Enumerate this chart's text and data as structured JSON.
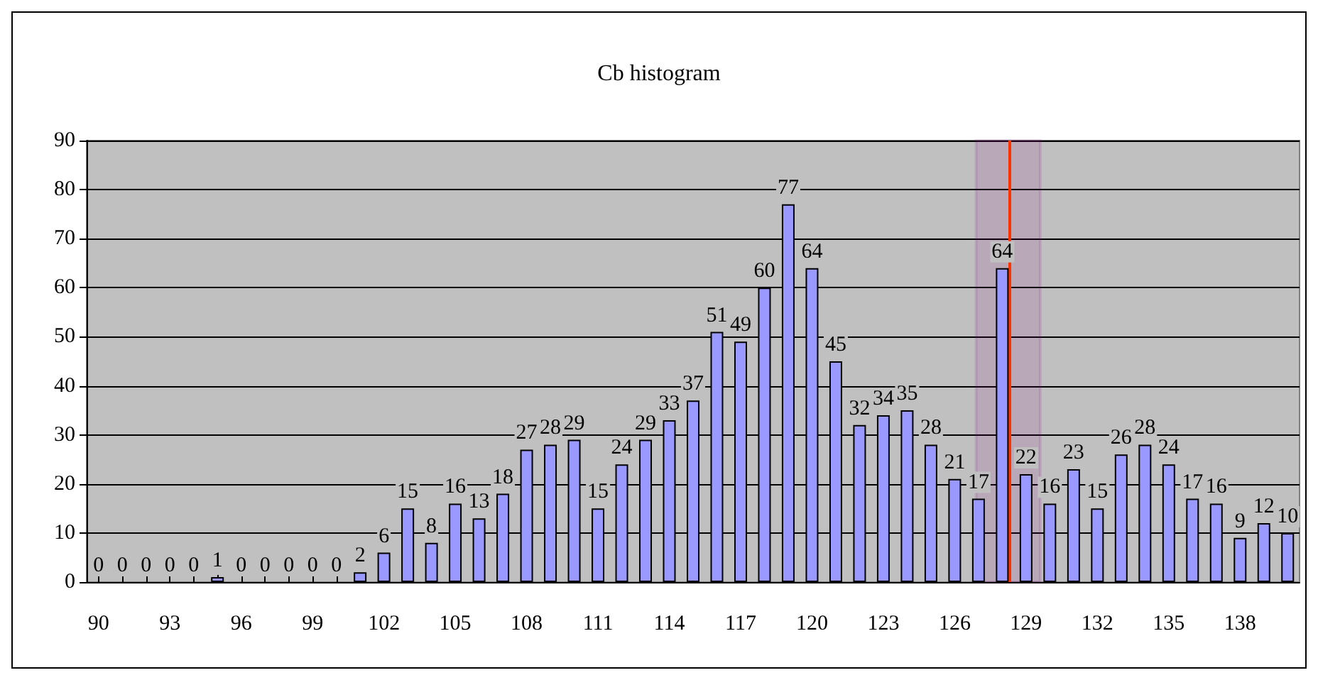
{
  "chart_data": {
    "type": "bar",
    "title": "Cb histogram",
    "x": [
      90,
      91,
      92,
      93,
      94,
      95,
      96,
      97,
      98,
      99,
      100,
      101,
      102,
      103,
      104,
      105,
      106,
      107,
      108,
      109,
      110,
      111,
      112,
      113,
      114,
      115,
      116,
      117,
      118,
      119,
      120,
      121,
      122,
      123,
      124,
      125,
      126,
      127,
      128,
      129,
      130,
      131,
      132,
      133,
      134,
      135,
      136,
      137,
      138,
      139,
      140
    ],
    "values": [
      0,
      0,
      0,
      0,
      0,
      1,
      0,
      0,
      0,
      0,
      0,
      2,
      6,
      15,
      8,
      16,
      13,
      18,
      27,
      28,
      29,
      15,
      24,
      29,
      33,
      37,
      51,
      49,
      60,
      77,
      64,
      45,
      32,
      34,
      35,
      28,
      21,
      17,
      64,
      22,
      16,
      23,
      15,
      26,
      28,
      24,
      17,
      16,
      9,
      12,
      10
    ],
    "color": "#9999ff",
    "xlim": [
      89.5,
      140.5
    ],
    "xticks": [
      90,
      93,
      96,
      99,
      102,
      105,
      108,
      111,
      114,
      117,
      120,
      123,
      126,
      129,
      132,
      135,
      138
    ],
    "ylim": [
      0,
      90
    ],
    "yticks": [
      0,
      10,
      20,
      30,
      40,
      50,
      60,
      70,
      80,
      90
    ],
    "grid": "y",
    "data_labels": true,
    "ref_lines": [
      {
        "axis": "x",
        "value": 128.3,
        "color": "#ff3300"
      }
    ],
    "bands": [
      {
        "axis": "x",
        "from": 126.9,
        "to": 129.6,
        "color": "#800080"
      }
    ]
  }
}
